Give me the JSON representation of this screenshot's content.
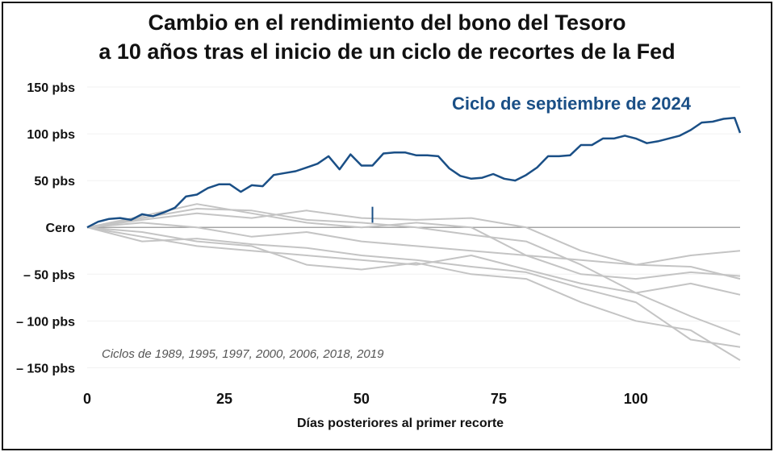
{
  "chart_data": {
    "type": "line",
    "title_line1": "Cambio en el rendimiento del bono del Tesoro",
    "title_line2": "a 10 años tras el inicio de un ciclo de recortes de la Fed",
    "xlabel": "Días posteriores al primer recorte",
    "ylabel": "",
    "xlim": [
      0,
      119
    ],
    "ylim": [
      -160,
      150
    ],
    "grid": false,
    "xticks": [
      {
        "value": 0,
        "label": "0"
      },
      {
        "value": 25,
        "label": "25"
      },
      {
        "value": 50,
        "label": "50"
      },
      {
        "value": 75,
        "label": "75"
      },
      {
        "value": 100,
        "label": "100"
      }
    ],
    "yticks": [
      {
        "value": 150,
        "label": "150 pbs"
      },
      {
        "value": 100,
        "label": "100 pbs"
      },
      {
        "value": 50,
        "label": "50 pbs"
      },
      {
        "value": 0,
        "label": "Cero"
      },
      {
        "value": -50,
        "label": "– 50 pbs"
      },
      {
        "value": -100,
        "label": "– 100 pbs"
      },
      {
        "value": -150,
        "label": "– 150 pbs"
      }
    ],
    "highlight": {
      "label": "Ciclo de septiembre de 2024",
      "color": "#1a4f86",
      "x": [
        0,
        2,
        4,
        6,
        8,
        10,
        12,
        14,
        16,
        18,
        20,
        22,
        24,
        26,
        28,
        30,
        32,
        34,
        36,
        38,
        40,
        42,
        44,
        46,
        48,
        50,
        52,
        54,
        56,
        58,
        60,
        62,
        64,
        66,
        68,
        70,
        72,
        74,
        76,
        78,
        80,
        82,
        84,
        86,
        88,
        90,
        92,
        94,
        96,
        98,
        100,
        102,
        104,
        106,
        108,
        110,
        112,
        114,
        116,
        118,
        119
      ],
      "y": [
        0,
        6,
        9,
        10,
        8,
        14,
        12,
        16,
        21,
        33,
        35,
        42,
        46,
        46,
        38,
        45,
        44,
        56,
        58,
        60,
        64,
        68,
        76,
        62,
        78,
        66,
        66,
        79,
        80,
        80,
        77,
        77,
        76,
        63,
        55,
        52,
        53,
        57,
        52,
        50,
        56,
        64,
        76,
        76,
        77,
        88,
        88,
        95,
        95,
        98,
        95,
        90,
        92,
        95,
        98,
        104,
        112,
        113,
        116,
        117,
        101
      ]
    },
    "other_cycles_label": "Ciclos de 1989, 1995, 1997, 2000, 2006, 2018, 2019",
    "other_cycles_color": "#c4c4c4",
    "other_cycles": [
      {
        "x": [
          0,
          10,
          20,
          30,
          40,
          50,
          60,
          70,
          80,
          90,
          100,
          110,
          119
        ],
        "y": [
          0,
          12,
          25,
          15,
          5,
          0,
          5,
          0,
          -30,
          -50,
          -55,
          -48,
          -52
        ]
      },
      {
        "x": [
          0,
          10,
          20,
          30,
          40,
          50,
          60,
          70,
          80,
          90,
          100,
          110,
          119
        ],
        "y": [
          0,
          8,
          15,
          10,
          18,
          10,
          8,
          10,
          0,
          -25,
          -40,
          -42,
          -55
        ]
      },
      {
        "x": [
          0,
          10,
          20,
          30,
          40,
          50,
          60,
          70,
          80,
          90,
          100,
          110,
          119
        ],
        "y": [
          0,
          -10,
          -20,
          -25,
          -30,
          -35,
          -40,
          -30,
          -45,
          -60,
          -70,
          -95,
          -115
        ]
      },
      {
        "x": [
          0,
          10,
          20,
          30,
          40,
          50,
          60,
          70,
          80,
          90,
          100,
          110,
          119
        ],
        "y": [
          0,
          -5,
          -15,
          -20,
          -40,
          -45,
          -38,
          -50,
          -55,
          -80,
          -100,
          -110,
          -142
        ]
      },
      {
        "x": [
          0,
          10,
          20,
          30,
          40,
          50,
          60,
          70,
          80,
          90,
          100,
          110,
          119
        ],
        "y": [
          0,
          5,
          0,
          -10,
          -5,
          -15,
          -20,
          -25,
          -30,
          -35,
          -40,
          -30,
          -25
        ]
      },
      {
        "x": [
          0,
          10,
          20,
          30,
          40,
          50,
          60,
          70,
          80,
          90,
          100,
          110,
          119
        ],
        "y": [
          0,
          -15,
          -12,
          -18,
          -22,
          -30,
          -35,
          -42,
          -48,
          -65,
          -80,
          -120,
          -128
        ]
      },
      {
        "x": [
          0,
          10,
          20,
          30,
          40,
          50,
          60,
          70,
          80,
          90,
          100,
          110,
          119
        ],
        "y": [
          0,
          10,
          20,
          18,
          8,
          5,
          0,
          -8,
          -15,
          -40,
          -70,
          -60,
          -72
        ]
      }
    ],
    "marker": {
      "x": 52,
      "y_from": 5,
      "y_to": 22
    }
  }
}
